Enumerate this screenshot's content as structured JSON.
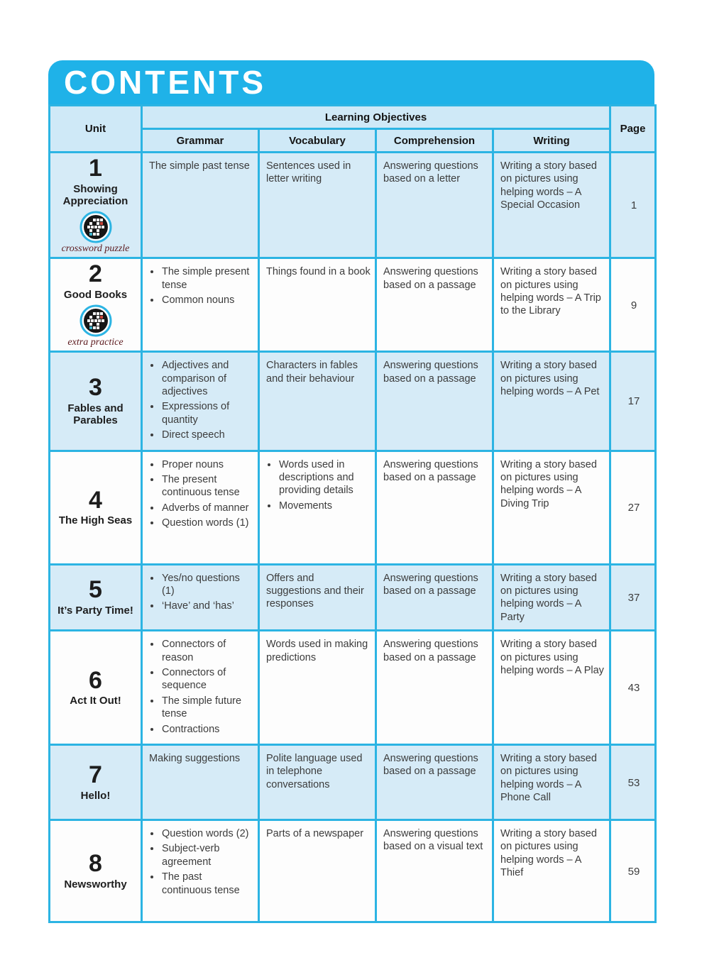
{
  "page_title": "CONTENTS",
  "colors": {
    "banner_blue": "#1fb2e8",
    "table_border": "#2cb4e3",
    "header_bg": "#cfe9f7",
    "row_alt_bg": "#d6ebf7",
    "badge_caption": "#5c191d"
  },
  "table": {
    "headers": {
      "unit": "Unit",
      "learning_objectives": "Learning Objectives",
      "grammar": "Grammar",
      "vocabulary": "Vocabulary",
      "comprehension": "Comprehension",
      "writing": "Writing",
      "page": "Page"
    },
    "rows": [
      {
        "unit_number": "1",
        "unit_title": "Showing Appreciation",
        "badge_icon": "crossword-puzzle-icon",
        "badge_label": "crossword puzzle",
        "grammar": [
          "The simple past tense"
        ],
        "vocabulary": [
          "Sentences used in letter writing"
        ],
        "comprehension": "Answering questions based on a letter",
        "writing": "Writing a story based on pictures using helping words – A Special Occasion",
        "page": "1"
      },
      {
        "unit_number": "2",
        "unit_title": "Good Books",
        "badge_icon": "extra-practice-icon",
        "badge_label": "extra practice",
        "grammar": [
          "The simple present tense",
          "Common nouns"
        ],
        "vocabulary": [
          "Things found in a book"
        ],
        "comprehension": "Answering questions based on a passage",
        "writing": "Writing a story based on pictures using helping words – A Trip to the Library",
        "page": "9"
      },
      {
        "unit_number": "3",
        "unit_title": "Fables and Parables",
        "grammar": [
          "Adjectives and comparison of adjectives",
          "Expressions of quantity",
          "Direct speech"
        ],
        "vocabulary": [
          "Characters in fables and their behaviour"
        ],
        "comprehension": "Answering questions based on a passage",
        "writing": "Writing a story based on pictures using helping words – A Pet",
        "page": "17"
      },
      {
        "unit_number": "4",
        "unit_title": "The High Seas",
        "grammar": [
          "Proper nouns",
          "The present continuous tense",
          "Adverbs of manner",
          "Question words (1)"
        ],
        "vocabulary": [
          "Words used in descriptions and providing details",
          "Movements"
        ],
        "comprehension": "Answering questions based on a passage",
        "writing": "Writing a story based on pictures using helping words – A Diving Trip",
        "page": "27"
      },
      {
        "unit_number": "5",
        "unit_title": "It’s Party Time!",
        "grammar": [
          "Yes/no questions (1)",
          "‘Have’ and ‘has’"
        ],
        "vocabulary": [
          "Offers and suggestions and their responses"
        ],
        "comprehension": "Answering questions based on a passage",
        "writing": "Writing a story based on pictures using helping words – A Party",
        "page": "37"
      },
      {
        "unit_number": "6",
        "unit_title": "Act It Out!",
        "grammar": [
          "Connectors of reason",
          "Connectors of sequence",
          "The simple future tense",
          "Contractions"
        ],
        "vocabulary": [
          "Words used in making predictions"
        ],
        "comprehension": "Answering questions based on a passage",
        "writing": "Writing a story based on pictures using helping words – A Play",
        "page": "43"
      },
      {
        "unit_number": "7",
        "unit_title": "Hello!",
        "grammar": [
          "Making suggestions"
        ],
        "vocabulary": [
          "Polite language used in telephone conversations"
        ],
        "comprehension": "Answering questions based on a passage",
        "writing": "Writing a story based on pictures using helping words – A Phone Call",
        "page": "53"
      },
      {
        "unit_number": "8",
        "unit_title": "Newsworthy",
        "grammar": [
          "Question words (2)",
          "Subject-verb agreement",
          "The past continuous tense"
        ],
        "vocabulary": [
          "Parts of a newspaper"
        ],
        "comprehension": "Answering questions based on a visual text",
        "writing": "Writing a story based on pictures using helping words – A Thief",
        "page": "59"
      }
    ]
  }
}
